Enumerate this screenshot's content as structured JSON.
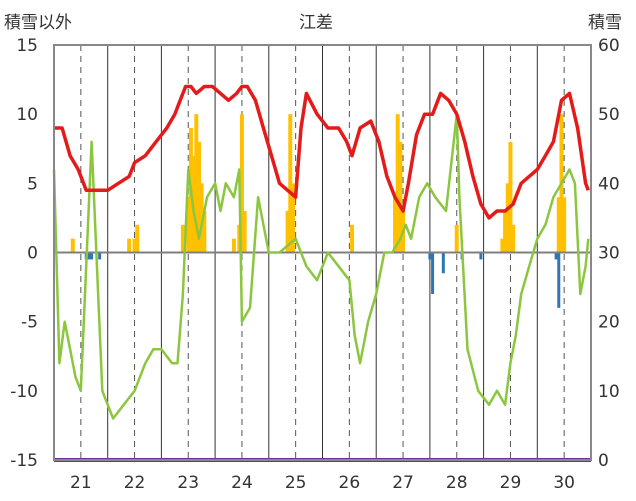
{
  "chart_data": {
    "type": "line",
    "title": "江差",
    "ylabel_left": "積雪以外",
    "ylabel_right": "積雪",
    "categories": [
      "21",
      "22",
      "23",
      "24",
      "25",
      "26",
      "27",
      "28",
      "29",
      "30"
    ],
    "x": [
      20.5,
      30.5
    ],
    "ylim_left": [
      -15,
      15
    ],
    "ylim_right": [
      0,
      60
    ],
    "yticks_left": [
      "15",
      "10",
      "5",
      "0",
      "-5",
      "-10",
      "-15"
    ],
    "yticks_right": [
      "60",
      "50",
      "40",
      "30",
      "20",
      "10",
      "0"
    ],
    "grid": "vertical dashed at day boundaries",
    "colors": {
      "red_line": "#e41b1b",
      "green_line": "#8cc63f",
      "orange_bars": "#ffc000",
      "blue_bars": "#2e75b6",
      "purple_line": "#7030a0",
      "zero_line": "#7f7f7f"
    },
    "series": [
      {
        "key": "red",
        "x": [
          20.5,
          20.65,
          20.8,
          20.95,
          21.1,
          21.3,
          21.5,
          21.7,
          21.9,
          22.0,
          22.2,
          22.4,
          22.6,
          22.75,
          22.85,
          22.95,
          23.05,
          23.15,
          23.3,
          23.45,
          23.6,
          23.75,
          23.9,
          24.0,
          24.1,
          24.25,
          24.4,
          24.55,
          24.7,
          24.85,
          25.0,
          25.1,
          25.2,
          25.4,
          25.6,
          25.8,
          25.95,
          26.05,
          26.2,
          26.4,
          26.55,
          26.7,
          26.85,
          27.0,
          27.1,
          27.25,
          27.4,
          27.55,
          27.7,
          27.85,
          28.0,
          28.15,
          28.3,
          28.45,
          28.6,
          28.75,
          28.9,
          29.05,
          29.2,
          29.35,
          29.5,
          29.65,
          29.8,
          29.95,
          30.1,
          30.25,
          30.4,
          30.45
        ],
        "values": [
          9,
          9,
          7,
          6,
          4.5,
          4.5,
          4.5,
          5,
          5.5,
          6.5,
          7,
          8,
          9,
          10,
          11,
          12,
          12,
          11.5,
          12,
          12,
          11.5,
          11,
          11.5,
          12,
          12,
          11,
          9,
          7,
          5,
          4.5,
          4,
          9,
          11.5,
          10,
          9,
          9,
          8,
          7,
          9,
          9.5,
          8,
          5.5,
          4,
          3,
          5,
          8.5,
          10,
          10,
          11.5,
          11,
          10,
          8,
          5.5,
          3.5,
          2.5,
          3,
          3,
          3.5,
          5,
          5.5,
          6,
          7,
          8,
          11,
          11.5,
          9,
          5,
          4.5
        ]
      },
      {
        "key": "green",
        "x": [
          20.5,
          20.6,
          20.7,
          20.8,
          20.9,
          21.0,
          21.2,
          21.4,
          21.6,
          21.8,
          22.0,
          22.2,
          22.35,
          22.5,
          22.7,
          22.8,
          22.9,
          23.0,
          23.1,
          23.2,
          23.35,
          23.5,
          23.6,
          23.7,
          23.85,
          23.95,
          24.0,
          24.15,
          24.3,
          24.5,
          24.7,
          24.85,
          25.0,
          25.2,
          25.4,
          25.6,
          25.8,
          26.0,
          26.1,
          26.2,
          26.35,
          26.5,
          26.65,
          26.8,
          26.95,
          27.05,
          27.15,
          27.3,
          27.45,
          27.6,
          27.8,
          28.0,
          28.05,
          28.2,
          28.4,
          28.6,
          28.75,
          28.9,
          29.0,
          29.1,
          29.2,
          29.35,
          29.5,
          29.65,
          29.8,
          29.95,
          30.1,
          30.2,
          30.3,
          30.4,
          30.45
        ],
        "values": [
          6,
          -8,
          -5,
          -7,
          -9,
          -10,
          8,
          -10,
          -12,
          -11,
          -10,
          -8,
          -7,
          -7,
          -8,
          -8,
          -3,
          6,
          3,
          1,
          4,
          5,
          3,
          5,
          4,
          6,
          -5,
          -4,
          4,
          0,
          0,
          0.5,
          1,
          -1,
          -2,
          0,
          -1,
          -2,
          -6,
          -8,
          -5,
          -3,
          0,
          0,
          1,
          2,
          1,
          4,
          5,
          4,
          3,
          10,
          4,
          -7,
          -10,
          -11,
          -10,
          -11,
          -8,
          -6,
          -3,
          -1,
          1,
          2,
          4,
          5,
          6,
          5,
          -3,
          -1,
          1
        ]
      },
      {
        "key": "purple",
        "x": [
          20.5,
          30.5
        ],
        "values": [
          -15,
          -15
        ]
      }
    ],
    "bars_orange": [
      {
        "x": 20.85,
        "value": 1
      },
      {
        "x": 21.9,
        "value": 1
      },
      {
        "x": 22.0,
        "value": 1
      },
      {
        "x": 22.05,
        "value": 2
      },
      {
        "x": 22.9,
        "value": 2
      },
      {
        "x": 23.0,
        "value": 4
      },
      {
        "x": 23.05,
        "value": 9
      },
      {
        "x": 23.1,
        "value": 7
      },
      {
        "x": 23.15,
        "value": 10
      },
      {
        "x": 23.2,
        "value": 8
      },
      {
        "x": 23.25,
        "value": 5
      },
      {
        "x": 23.3,
        "value": 3
      },
      {
        "x": 23.85,
        "value": 1
      },
      {
        "x": 23.95,
        "value": 2
      },
      {
        "x": 24.0,
        "value": 10
      },
      {
        "x": 24.05,
        "value": 3
      },
      {
        "x": 24.85,
        "value": 3
      },
      {
        "x": 24.9,
        "value": 10
      },
      {
        "x": 24.95,
        "value": 5
      },
      {
        "x": 26.05,
        "value": 2
      },
      {
        "x": 26.85,
        "value": 4
      },
      {
        "x": 26.9,
        "value": 10
      },
      {
        "x": 26.95,
        "value": 8
      },
      {
        "x": 27.0,
        "value": 3
      },
      {
        "x": 28.0,
        "value": 2
      },
      {
        "x": 28.85,
        "value": 1
      },
      {
        "x": 28.9,
        "value": 3
      },
      {
        "x": 28.95,
        "value": 5
      },
      {
        "x": 29.0,
        "value": 8
      },
      {
        "x": 29.05,
        "value": 2
      },
      {
        "x": 29.9,
        "value": 4
      },
      {
        "x": 29.95,
        "value": 10
      },
      {
        "x": 30.0,
        "value": 4
      }
    ],
    "bars_blue": [
      {
        "x": 21.1,
        "value": -0.5
      },
      {
        "x": 21.15,
        "value": -0.5
      },
      {
        "x": 21.2,
        "value": -0.5
      },
      {
        "x": 21.35,
        "value": -0.5
      },
      {
        "x": 27.5,
        "value": -0.5
      },
      {
        "x": 27.55,
        "value": -3
      },
      {
        "x": 27.75,
        "value": -1.5
      },
      {
        "x": 28.1,
        "value": -0.5
      },
      {
        "x": 28.45,
        "value": -0.5
      },
      {
        "x": 29.85,
        "value": -0.5
      },
      {
        "x": 29.9,
        "value": -4
      }
    ]
  }
}
